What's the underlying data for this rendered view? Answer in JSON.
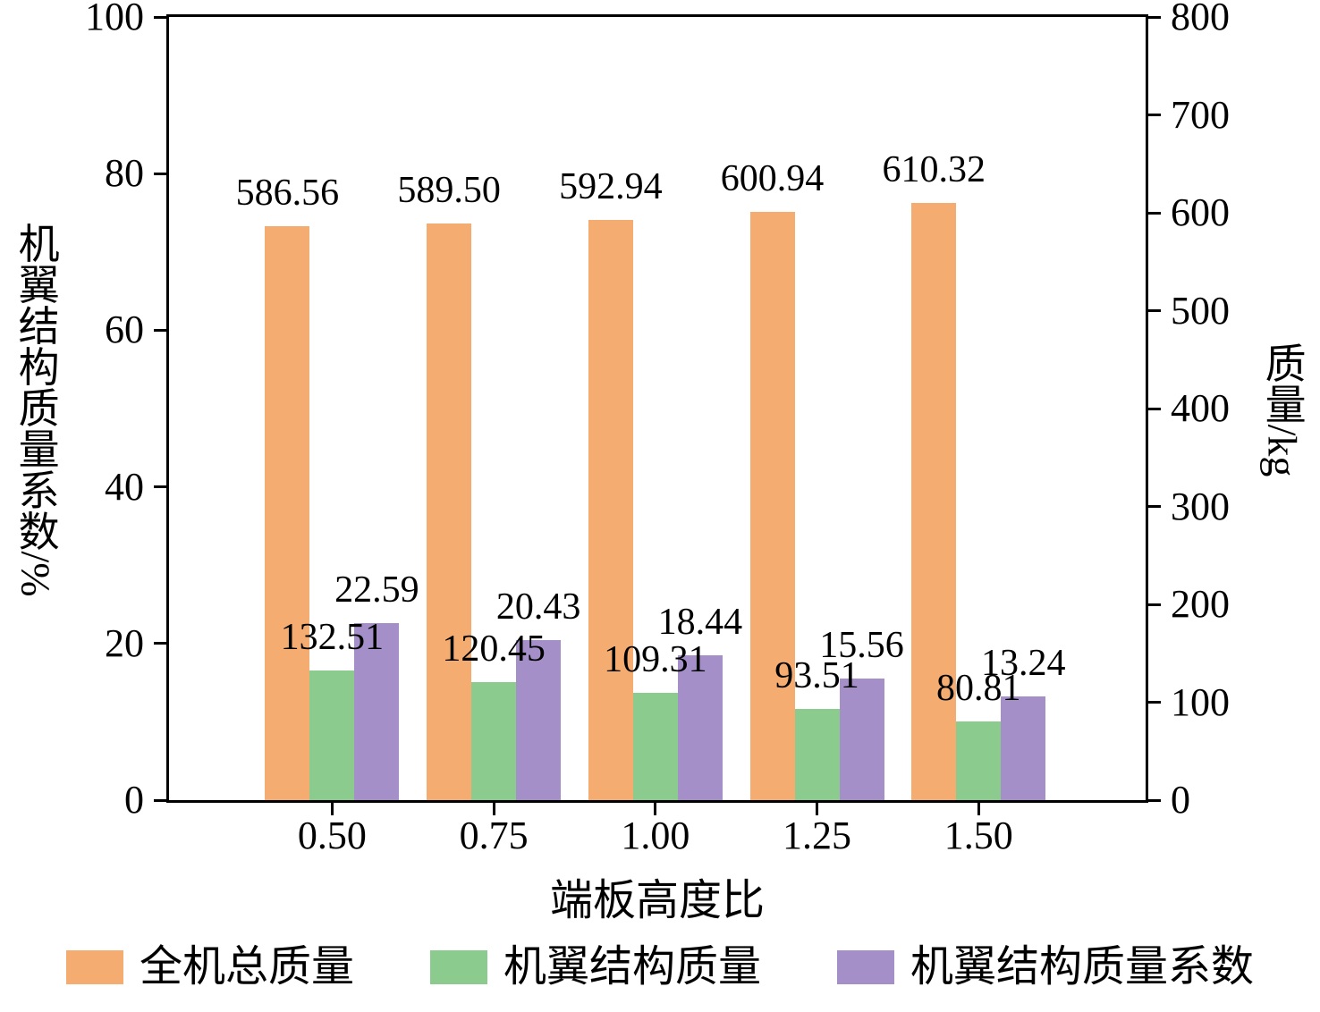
{
  "chart_data": {
    "type": "bar",
    "categories": [
      "0.50",
      "0.75",
      "1.00",
      "1.25",
      "1.50"
    ],
    "series": [
      {
        "name": "全机总质量",
        "axis": "right",
        "color": "#F5AC71",
        "values": [
          586.56,
          589.5,
          592.94,
          600.94,
          610.32
        ],
        "labels": [
          "586.56",
          "589.50",
          "592.94",
          "600.94",
          "610.32"
        ]
      },
      {
        "name": "机翼结构质量",
        "axis": "right",
        "color": "#8BCB8D",
        "values": [
          132.51,
          120.45,
          109.31,
          93.51,
          80.81
        ],
        "labels": [
          "132.51",
          "120.45",
          "109.31",
          "93.51",
          "80.81"
        ]
      },
      {
        "name": "机翼结构质量系数",
        "axis": "left",
        "color": "#A58FC9",
        "values": [
          22.59,
          20.43,
          18.44,
          15.56,
          13.24
        ],
        "labels": [
          "22.59",
          "20.43",
          "18.44",
          "15.56",
          "13.24"
        ]
      }
    ],
    "left_axis": {
      "label": "机翼结构质量系数/%",
      "min": 0,
      "max": 100,
      "ticks": [
        0,
        20,
        40,
        60,
        80,
        100
      ]
    },
    "right_axis": {
      "label": "质量/kg",
      "min": 0,
      "max": 800,
      "ticks": [
        0,
        100,
        200,
        300,
        400,
        500,
        600,
        700,
        800
      ]
    },
    "xlabel": "端板高度比",
    "grid": false,
    "legend_position": "bottom"
  }
}
